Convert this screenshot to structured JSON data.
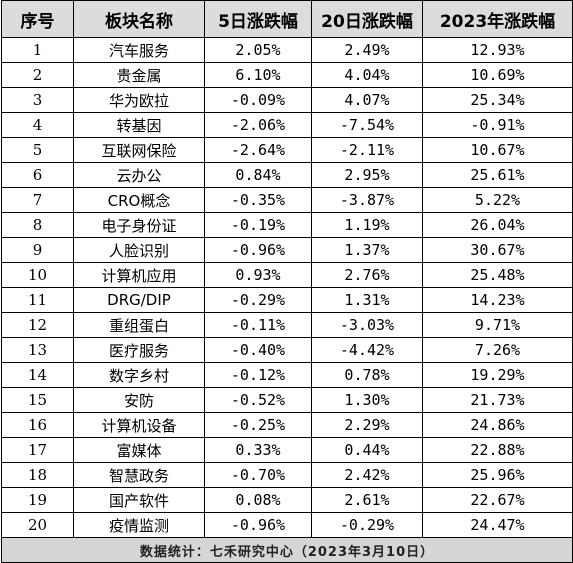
{
  "table": {
    "headers": [
      "序号",
      "板块名称",
      "5日涨跌幅",
      "20日涨跌幅",
      "2023年涨跌幅"
    ],
    "rows": [
      [
        "1",
        "汽车服务",
        "2.05%",
        "2.49%",
        "12.93%"
      ],
      [
        "2",
        "贵金属",
        "6.10%",
        "4.04%",
        "10.69%"
      ],
      [
        "3",
        "华为欧拉",
        "-0.09%",
        "4.07%",
        "25.34%"
      ],
      [
        "4",
        "转基因",
        "-2.06%",
        "-7.54%",
        "-0.91%"
      ],
      [
        "5",
        "互联网保险",
        "-2.64%",
        "-2.11%",
        "10.67%"
      ],
      [
        "6",
        "云办公",
        "0.84%",
        "2.95%",
        "25.61%"
      ],
      [
        "7",
        "CRO概念",
        "-0.35%",
        "-3.87%",
        "5.22%"
      ],
      [
        "8",
        "电子身份证",
        "-0.19%",
        "1.19%",
        "26.04%"
      ],
      [
        "9",
        "人脸识别",
        "-0.96%",
        "1.37%",
        "30.67%"
      ],
      [
        "10",
        "计算机应用",
        "0.93%",
        "2.76%",
        "25.48%"
      ],
      [
        "11",
        "DRG/DIP",
        "-0.29%",
        "1.31%",
        "14.23%"
      ],
      [
        "12",
        "重组蛋白",
        "-0.11%",
        "-3.03%",
        "9.71%"
      ],
      [
        "13",
        "医疗服务",
        "-0.40%",
        "-4.42%",
        "7.26%"
      ],
      [
        "14",
        "数字乡村",
        "-0.12%",
        "0.78%",
        "19.29%"
      ],
      [
        "15",
        "安防",
        "-0.52%",
        "1.30%",
        "21.73%"
      ],
      [
        "16",
        "计算机设备",
        "-0.25%",
        "2.29%",
        "24.86%"
      ],
      [
        "17",
        "富媒体",
        "0.33%",
        "0.44%",
        "22.88%"
      ],
      [
        "18",
        "智慧政务",
        "-0.70%",
        "2.42%",
        "25.96%"
      ],
      [
        "19",
        "国产软件",
        "0.08%",
        "2.61%",
        "22.67%"
      ],
      [
        "20",
        "疫情监测",
        "-0.96%",
        "-0.29%",
        "24.47%"
      ]
    ],
    "footer": "数据统计：七禾研究中心（2023年3月10日）"
  }
}
